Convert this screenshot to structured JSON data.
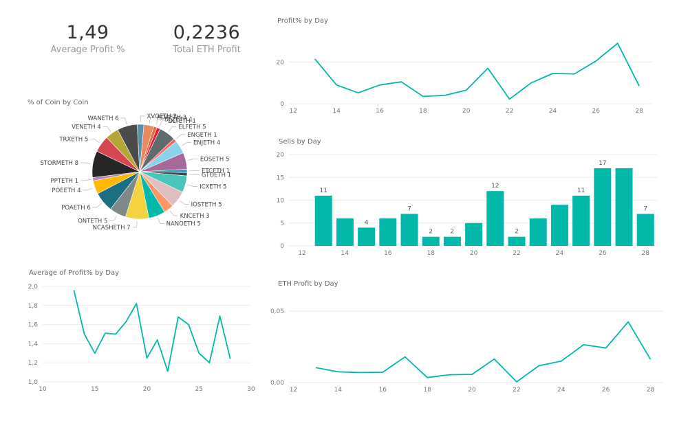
{
  "kpis": {
    "avg_profit_value": "1,49",
    "avg_profit_label": "Average Profit %",
    "eth_profit_value": "0,2236",
    "eth_profit_label": "Total ETH Profit"
  },
  "colors": {
    "accent": "#01B8AA",
    "grid": "#ebebeb",
    "text": "#777777"
  },
  "chart_data": [
    {
      "type": "pie",
      "title": "% of Coin by Coin",
      "labels": [
        "ADAETH",
        "BLZETH",
        "DLTETH",
        "ELFETH",
        "ENGETH",
        "ENJETH",
        "EOSETH",
        "ETCETH",
        "GTOETH",
        "ICXETH",
        "IOSTETH",
        "KNCETH",
        "NANOETH",
        "NCASHETH",
        "ONTETH",
        "POAETH",
        "POEETH",
        "PPTETH",
        "STORMETH",
        "TRXETH",
        "VENETH",
        "WANETH",
        "XVGETH"
      ],
      "values": [
        3,
        1,
        1,
        5,
        1,
        4,
        5,
        1,
        1,
        5,
        5,
        3,
        5,
        7,
        5,
        6,
        4,
        1,
        8,
        5,
        4,
        6,
        2
      ],
      "display_labels": [
        "ADAETH 3",
        "BLZETH 1",
        "DLTETH 1",
        "ELFETH 5",
        "ENGETH 1",
        "ENJETH 4",
        "EOSETH 5",
        "ETCETH 1",
        "GTOETH 1",
        "ICXETH 5",
        "IOSTETH 5",
        "KNCETH 3",
        "NANOETH 5",
        "NCASHETH 7",
        "ONTETH 5",
        "POAETH 6",
        "POEETH 4",
        "PPTETH 1",
        "STORMETH 8",
        "TRXETH 5",
        "VENETH 4",
        "WANETH 6",
        "XVGETH 2"
      ]
    },
    {
      "type": "line",
      "title": "Profit% by Day",
      "x": [
        13,
        14,
        15,
        16,
        17,
        18,
        19,
        20,
        21,
        22,
        23,
        24,
        25,
        26,
        27,
        28
      ],
      "y": [
        21.5,
        9,
        5.2,
        9,
        10.5,
        3.5,
        4,
        6.5,
        17,
        2.2,
        10,
        14.5,
        14.3,
        20.5,
        29,
        8.5
      ],
      "xticks": [
        "12",
        "14",
        "16",
        "18",
        "20",
        "22",
        "24",
        "26",
        "28"
      ],
      "yticks": [
        "0",
        "20"
      ],
      "xlim": [
        11.8,
        28.6
      ],
      "ylim": [
        0,
        30
      ]
    },
    {
      "type": "bar",
      "title": "Sells by Day",
      "categories": [
        13,
        14,
        15,
        16,
        17,
        18,
        19,
        20,
        21,
        22,
        23,
        24,
        25,
        26,
        27,
        28
      ],
      "values": [
        11,
        6,
        4,
        6,
        7,
        2,
        2,
        5,
        12,
        2,
        6,
        9,
        11,
        17,
        17,
        7
      ],
      "data_labels": [
        "11",
        "",
        "4",
        "",
        "7",
        "2",
        "2",
        "",
        "12",
        "2",
        "",
        "",
        "11",
        "17",
        "",
        "7"
      ],
      "xticks": [
        "12",
        "14",
        "16",
        "18",
        "20",
        "22",
        "24",
        "26",
        "28"
      ],
      "yticks": [
        "0",
        "5",
        "10",
        "15",
        "20"
      ],
      "ylim": [
        0,
        20
      ]
    },
    {
      "type": "line",
      "title": "Average of Profit% by Day",
      "x": [
        13,
        14,
        15,
        16,
        17,
        18,
        19,
        20,
        21,
        22,
        23,
        24,
        25,
        26,
        27,
        28
      ],
      "y": [
        1.96,
        1.5,
        1.3,
        1.51,
        1.5,
        1.63,
        1.82,
        1.25,
        1.44,
        1.11,
        1.68,
        1.6,
        1.3,
        1.2,
        1.69,
        1.24
      ],
      "xticks": [
        "10",
        "15",
        "20",
        "25",
        "30"
      ],
      "yticks": [
        "1,0",
        "1,2",
        "1,4",
        "1,6",
        "1,8",
        "2,0"
      ],
      "xlim": [
        10,
        30
      ],
      "ylim": [
        1.0,
        2.0
      ]
    },
    {
      "type": "line",
      "title": "ETH Profit by Day",
      "x": [
        13,
        14,
        15,
        16,
        17,
        18,
        19,
        20,
        21,
        22,
        23,
        24,
        25,
        26,
        27,
        28
      ],
      "y": [
        0.0105,
        0.0075,
        0.007,
        0.0072,
        0.018,
        0.0035,
        0.0055,
        0.0057,
        0.0165,
        0.0005,
        0.0118,
        0.015,
        0.0265,
        0.0242,
        0.0425,
        0.0162
      ],
      "xticks": [
        "12",
        "14",
        "16",
        "18",
        "20",
        "22",
        "24",
        "26",
        "28"
      ],
      "yticks": [
        "0,00",
        "0,05"
      ],
      "xlim": [
        11.8,
        28.6
      ],
      "ylim": [
        0,
        0.05
      ]
    }
  ]
}
